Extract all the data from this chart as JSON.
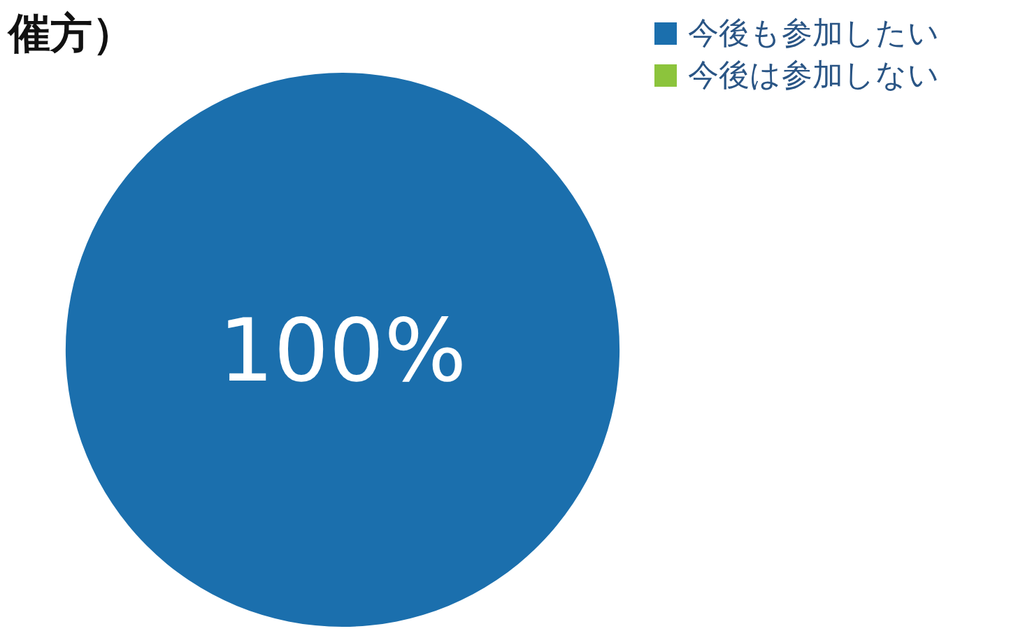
{
  "chart_data": {
    "type": "pie",
    "title": "催方）",
    "categories": [
      "今後も参加したい",
      "今後は参加しない"
    ],
    "values": [
      100,
      0
    ],
    "colors": [
      "#1b6fad",
      "#8cc43c"
    ],
    "value_labels": [
      "100%",
      null
    ],
    "legend": "top right"
  }
}
